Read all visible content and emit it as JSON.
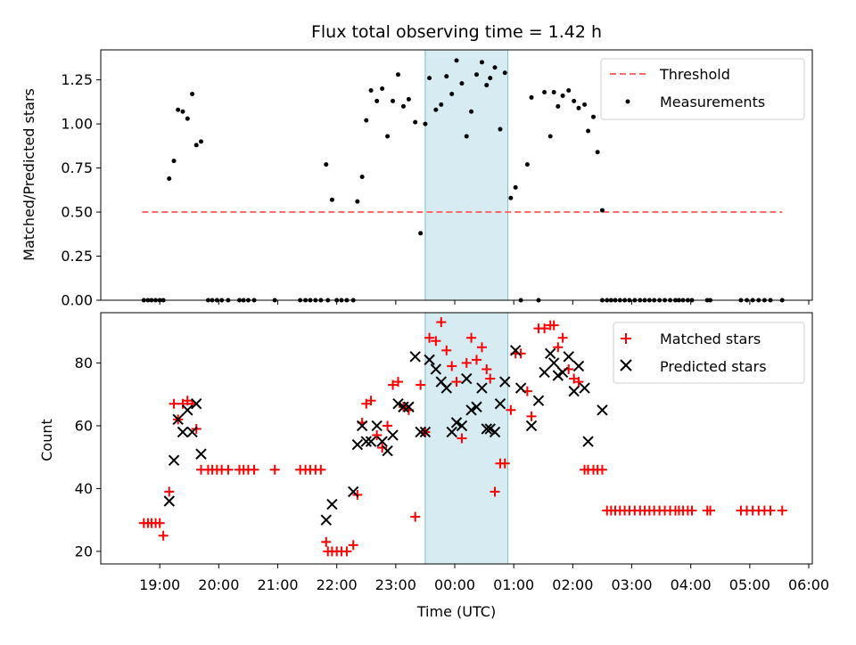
{
  "chart_data": [
    {
      "type": "scatter",
      "title": "Flux total observing time = 1.42 h",
      "xlabel": "",
      "ylabel": "Matched/Predicted stars",
      "ylim": [
        0,
        1.42
      ],
      "yticks": [
        0.0,
        0.25,
        0.5,
        0.75,
        1.0,
        1.25
      ],
      "ytick_labels": [
        "0.00",
        "0.25",
        "0.50",
        "0.75",
        "1.00",
        "1.25"
      ],
      "highlight_span_hours": [
        23.5,
        24.9
      ],
      "highlight_color": "#add8e6",
      "legend_position": "upper-right",
      "series": [
        {
          "name": "Threshold",
          "style": "dashed-line",
          "color": "#ff6b6b",
          "x_hours": [
            18.7,
            29.55
          ],
          "y": [
            0.5,
            0.5
          ]
        },
        {
          "name": "Measurements",
          "style": "dot",
          "color": "#000000",
          "x_hours": [
            18.73,
            18.8,
            18.86,
            18.93,
            19.0,
            19.06,
            19.16,
            19.24,
            19.31,
            19.39,
            19.47,
            19.55,
            19.62,
            19.7,
            19.82,
            19.89,
            19.97,
            20.05,
            20.16,
            20.35,
            20.42,
            20.5,
            20.6,
            20.95,
            21.38,
            21.47,
            21.55,
            21.64,
            21.73,
            21.82,
            21.85,
            21.92,
            22.0,
            22.08,
            22.17,
            22.28,
            22.35,
            22.43,
            22.5,
            22.58,
            22.68,
            22.77,
            22.86,
            22.95,
            23.04,
            23.13,
            23.22,
            23.33,
            23.42,
            23.5,
            23.57,
            23.68,
            23.77,
            23.86,
            23.95,
            24.03,
            24.12,
            24.2,
            24.28,
            24.37,
            24.46,
            24.54,
            24.6,
            24.68,
            24.77,
            24.85,
            24.95,
            25.03,
            25.12,
            25.23,
            25.3,
            25.42,
            25.52,
            25.62,
            25.68,
            25.75,
            25.83,
            25.93,
            26.02,
            26.1,
            26.2,
            26.26,
            26.35,
            26.42,
            26.5,
            26.58,
            26.65,
            26.72,
            26.8,
            26.88,
            26.96,
            27.05,
            27.14,
            27.22,
            27.3,
            27.38,
            27.47,
            27.56,
            27.65,
            27.74,
            27.8,
            27.87,
            27.95,
            28.02,
            28.28,
            28.33,
            28.85,
            28.95,
            29.05,
            29.15,
            29.25,
            29.35,
            29.55
          ],
          "y": [
            0.0,
            0.0,
            0.0,
            0.0,
            0.0,
            0.0,
            0.69,
            0.79,
            1.08,
            1.07,
            1.03,
            1.17,
            0.88,
            0.9,
            0.0,
            0.0,
            0.0,
            0.0,
            0.0,
            0.0,
            0.0,
            0.0,
            0.0,
            0.0,
            0.0,
            0.0,
            0.0,
            0.0,
            0.0,
            0.77,
            0.0,
            0.57,
            0.0,
            0.0,
            0.0,
            0.0,
            0.56,
            0.7,
            1.02,
            1.19,
            1.13,
            1.2,
            0.93,
            1.13,
            1.28,
            1.1,
            1.14,
            1.01,
            0.38,
            1.0,
            1.26,
            1.08,
            1.11,
            1.27,
            1.17,
            1.36,
            1.23,
            0.93,
            1.07,
            1.28,
            1.35,
            1.22,
            1.26,
            1.32,
            0.97,
            1.29,
            0.58,
            0.64,
            0.0,
            0.77,
            1.15,
            0.0,
            1.18,
            0.93,
            1.18,
            1.1,
            1.16,
            1.19,
            1.13,
            1.09,
            1.11,
            0.96,
            1.04,
            0.84,
            0.0,
            0.0,
            0.0,
            0.0,
            0.0,
            0.0,
            0.0,
            0.0,
            0.0,
            0.0,
            0.0,
            0.0,
            0.0,
            0.0,
            0.0,
            0.0,
            0.0,
            0.0,
            0.0,
            0.0,
            0.0,
            0.0,
            0.0,
            0.0,
            0.0,
            0.0,
            0.0,
            0.0,
            0.0
          ]
        },
        {
          "name": "",
          "style": "dot",
          "color": "#000000",
          "x_hours": [
            26.5
          ],
          "y": [
            0.51
          ]
        }
      ]
    },
    {
      "type": "scatter",
      "title": "",
      "xlabel": "Time (UTC)",
      "ylabel": "Count",
      "ylim": [
        16,
        96
      ],
      "yticks": [
        20,
        40,
        60,
        80
      ],
      "ytick_labels": [
        "20",
        "40",
        "60",
        "80"
      ],
      "xlim_hours": [
        18.0,
        30.06
      ],
      "xticks_hours": [
        19,
        20,
        21,
        22,
        23,
        24,
        25,
        26,
        27,
        28,
        29,
        30
      ],
      "xtick_labels": [
        "19:00",
        "20:00",
        "21:00",
        "22:00",
        "23:00",
        "00:00",
        "01:00",
        "02:00",
        "03:00",
        "04:00",
        "05:00",
        "06:00"
      ],
      "highlight_span_hours": [
        23.5,
        24.9
      ],
      "highlight_color": "#add8e6",
      "legend_position": "upper-right",
      "series": [
        {
          "name": "Matched stars",
          "style": "plus",
          "color": "#ff0000",
          "x_hours": [
            18.73,
            18.8,
            18.86,
            18.93,
            19.0,
            19.06,
            19.16,
            19.24,
            19.31,
            19.39,
            19.47,
            19.55,
            19.62,
            19.7,
            19.82,
            19.89,
            19.97,
            20.05,
            20.16,
            20.35,
            20.42,
            20.5,
            20.6,
            20.95,
            21.38,
            21.47,
            21.55,
            21.64,
            21.73,
            21.82,
            21.85,
            21.92,
            22.0,
            22.08,
            22.17,
            22.28,
            22.35,
            22.43,
            22.5,
            22.58,
            22.68,
            22.77,
            22.86,
            22.95,
            23.04,
            23.13,
            23.22,
            23.33,
            23.42,
            23.5,
            23.57,
            23.68,
            23.77,
            23.86,
            23.95,
            24.03,
            24.12,
            24.2,
            24.28,
            24.37,
            24.46,
            24.54,
            24.6,
            24.68,
            24.77,
            24.85,
            24.95,
            25.03,
            25.12,
            25.23,
            25.3,
            25.42,
            25.52,
            25.62,
            25.68,
            25.75,
            25.83,
            25.93,
            26.02,
            26.1,
            26.2,
            26.26,
            26.35,
            26.42,
            26.5,
            26.58,
            26.65,
            26.72,
            26.8,
            26.88,
            26.96,
            27.05,
            27.14,
            27.22,
            27.3,
            27.38,
            27.47,
            27.56,
            27.65,
            27.74,
            27.8,
            27.87,
            27.95,
            28.02,
            28.28,
            28.33,
            28.85,
            28.95,
            29.05,
            29.15,
            29.25,
            29.35,
            29.55
          ],
          "y": [
            29,
            29,
            29,
            29,
            29,
            25,
            39,
            67,
            62,
            67,
            68,
            67,
            59,
            46,
            46,
            46,
            46,
            46,
            46,
            46,
            46,
            46,
            46,
            46,
            46,
            46,
            46,
            46,
            46,
            23,
            20,
            20,
            20,
            20,
            20,
            22,
            38,
            61,
            67,
            68,
            57,
            53,
            60,
            73,
            74,
            66,
            65,
            31,
            73,
            58,
            88,
            87,
            93,
            84,
            79,
            74,
            56,
            80,
            88,
            81,
            85,
            78,
            75,
            39,
            48,
            48,
            65,
            83,
            83,
            71,
            63,
            91,
            91,
            92,
            92,
            85,
            88,
            78,
            75,
            74,
            46,
            46,
            46,
            46,
            46,
            33,
            33,
            33,
            33,
            33,
            33,
            33,
            33,
            33,
            33,
            33,
            33,
            33,
            33,
            33,
            33,
            33,
            33,
            33,
            33,
            33,
            33,
            33,
            33,
            33,
            33,
            33,
            33
          ]
        },
        {
          "name": "Predicted stars",
          "style": "x",
          "color": "#000000",
          "x_hours": [
            19.16,
            19.24,
            19.31,
            19.39,
            19.47,
            19.55,
            19.62,
            19.7,
            21.82,
            21.92,
            22.28,
            22.35,
            22.43,
            22.5,
            22.58,
            22.68,
            22.77,
            22.86,
            22.95,
            23.04,
            23.13,
            23.22,
            23.33,
            23.42,
            23.5,
            23.57,
            23.68,
            23.77,
            23.86,
            23.95,
            24.03,
            24.12,
            24.2,
            24.28,
            24.37,
            24.46,
            24.54,
            24.6,
            24.68,
            24.77,
            24.85,
            25.03,
            25.12,
            25.3,
            25.42,
            25.52,
            25.62,
            25.68,
            25.75,
            25.83,
            25.93,
            26.02,
            26.1,
            26.2,
            26.26,
            26.5
          ],
          "y": [
            36,
            49,
            62,
            58,
            65,
            58,
            67,
            51,
            30,
            35,
            39,
            54,
            60,
            55,
            55,
            60,
            55,
            52,
            57,
            67,
            66,
            66,
            82,
            58,
            58,
            81,
            78,
            74,
            72,
            58,
            61,
            60,
            75,
            65,
            66,
            72,
            59,
            59,
            58,
            67,
            74,
            84,
            72,
            60,
            68,
            77,
            83,
            80,
            76,
            77,
            82,
            71,
            79,
            72,
            55,
            65
          ]
        }
      ]
    }
  ]
}
